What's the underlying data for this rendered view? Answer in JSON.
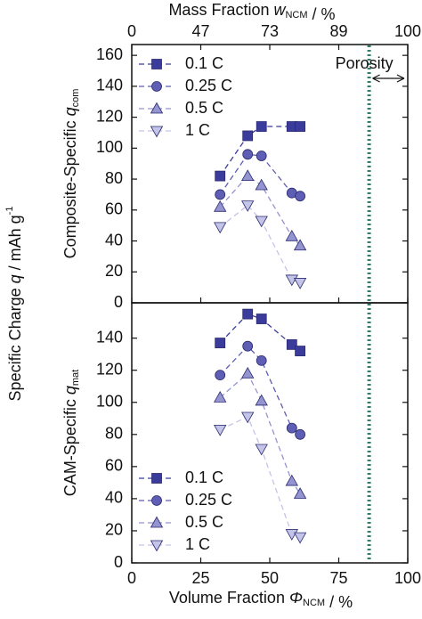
{
  "chart_data": [
    {
      "type": "line",
      "x2label": {
        "text": "Mass Fraction ",
        "var": "w",
        "sub": "NCM",
        "unit": " / %"
      },
      "x2ticks": [
        {
          "value": 0,
          "label": "0"
        },
        {
          "value": 25,
          "label": "47"
        },
        {
          "value": 50,
          "label": "73"
        },
        {
          "value": 75,
          "label": "89"
        },
        {
          "value": 100,
          "label": "100"
        }
      ],
      "xlim": [
        0,
        100
      ],
      "ylim": [
        0,
        167
      ],
      "yticks": [
        0,
        20,
        40,
        60,
        80,
        100,
        120,
        140,
        160
      ],
      "ylabel": {
        "text": "Composite-Specific ",
        "var": "q",
        "sub": "com"
      },
      "shared_ylabel": {
        "text": "Specific Charge ",
        "var": "q",
        "unit": " / mAh g",
        "sup": "-1"
      },
      "annotation": "Porosity",
      "vline": 86,
      "legend": "upper left",
      "x": [
        32,
        42,
        47,
        58,
        61
      ],
      "series": [
        {
          "name": "0.1 C",
          "color": "#3b3b9c",
          "marker": "square",
          "values": [
            82,
            108,
            114,
            114,
            114
          ]
        },
        {
          "name": "0.25 C",
          "color": "#5e5eb4",
          "marker": "circle",
          "values": [
            70,
            96,
            95,
            71,
            69
          ]
        },
        {
          "name": "0.5 C",
          "color": "#9494d0",
          "marker": "triangle-up",
          "values": [
            62,
            82,
            76,
            43,
            37
          ]
        },
        {
          "name": "1 C",
          "color": "#c4c4e8",
          "marker": "triangle-down",
          "values": [
            49,
            63,
            53,
            15,
            13
          ]
        }
      ]
    },
    {
      "type": "line",
      "xlabel": {
        "text": "Volume Fraction ",
        "var": "Φ",
        "sub": "NCM",
        "unit": " / %"
      },
      "xlim": [
        0,
        100
      ],
      "xticks": [
        0,
        25,
        50,
        75,
        100
      ],
      "ylim": [
        0,
        162
      ],
      "yticks": [
        0,
        20,
        40,
        60,
        80,
        100,
        120,
        140
      ],
      "ylabel": {
        "text": "CAM-Specific ",
        "var": "q",
        "sub": "mat"
      },
      "vline": 86,
      "legend": "lower left",
      "x": [
        32,
        42,
        47,
        58,
        61
      ],
      "series": [
        {
          "name": "0.1 C",
          "color": "#3b3b9c",
          "marker": "square",
          "values": [
            137,
            155,
            152,
            136,
            132
          ]
        },
        {
          "name": "0.25 C",
          "color": "#5e5eb4",
          "marker": "circle",
          "values": [
            117,
            135,
            126,
            84,
            80
          ]
        },
        {
          "name": "0.5 C",
          "color": "#9494d0",
          "marker": "triangle-up",
          "values": [
            103,
            118,
            101,
            51,
            43
          ]
        },
        {
          "name": "1 C",
          "color": "#c4c4e8",
          "marker": "triangle-down",
          "values": [
            83,
            91,
            71,
            18,
            16
          ]
        }
      ]
    }
  ]
}
